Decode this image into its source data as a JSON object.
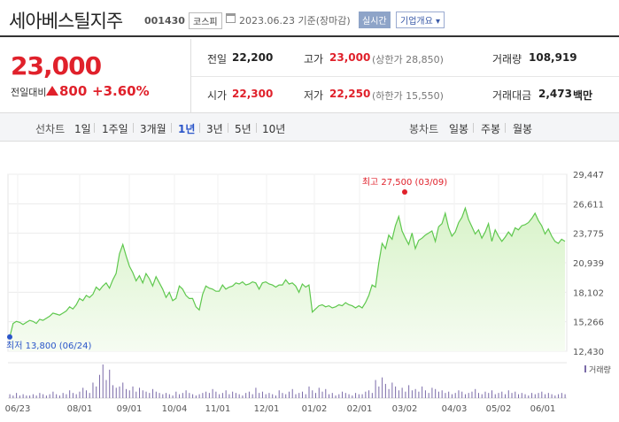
{
  "header": {
    "company_name": "세아베스틸지주",
    "code": "001430",
    "market": "코스피",
    "date_text": "2023.06.23 기준(장마감)",
    "realtime_label": "실시간",
    "info_label": "기업개요 ▾"
  },
  "summary": {
    "price": "23,000",
    "change_label": "전일대비",
    "change_value": "800",
    "change_pct": "+3.60%",
    "prev_close_label": "전일",
    "prev_close": "22,200",
    "high_label": "고가",
    "high": "23,000",
    "upper_limit": "(상한가 28,850)",
    "volume_label": "거래량",
    "volume": "108,919",
    "open_label": "시가",
    "open": "22,300",
    "low_label": "저가",
    "low": "22,250",
    "lower_limit": "(하한가 15,550)",
    "amount_label": "거래대금",
    "amount": "2,473",
    "amount_unit": "백만"
  },
  "tabs": {
    "line_chart_label": "선차트",
    "periods": [
      "1일",
      "1주일",
      "3개월",
      "1년",
      "3년",
      "5년",
      "10년"
    ],
    "active_period": "1년",
    "candle_label": "봉차트",
    "candles": [
      "일봉",
      "주봉",
      "월봉"
    ]
  },
  "colors": {
    "up": "#e0212b",
    "accent": "#2a55c9",
    "line": "#5fc84e",
    "area": "#d8f3c9"
  },
  "chart_data": {
    "type": "area",
    "y_ticks": [
      "29,447",
      "26,611",
      "23,775",
      "20,939",
      "18,102",
      "15,266",
      "12,430"
    ],
    "x_labels": [
      "06/23",
      "08/01",
      "09/01",
      "10/04",
      "11/01",
      "12/01",
      "01/02",
      "02/01",
      "03/02",
      "04/03",
      "05/02",
      "06/01"
    ],
    "volume_legend": "거래량",
    "max_annotation": "최고 27,500 (03/09)",
    "min_annotation": "최저 13,800 (06/24)",
    "ylim": [
      12430,
      29447
    ],
    "series": [
      {
        "values": [
          13800,
          15100,
          15300,
          15200,
          15000,
          15200,
          15400,
          15300,
          15100,
          15500,
          15400,
          15600,
          15800,
          16100,
          16000,
          15900,
          16100,
          16300,
          16700,
          16500,
          16900,
          17500,
          17300,
          17800,
          17600,
          17900,
          18600,
          18300,
          18700,
          19000,
          18500,
          19300,
          19900,
          21800,
          22700,
          21600,
          20600,
          20000,
          19200,
          19700,
          19000,
          19900,
          19400,
          18700,
          19600,
          19000,
          18400,
          17600,
          18100,
          17300,
          17500,
          18700,
          18400,
          17800,
          17500,
          17500,
          16700,
          16400,
          17900,
          18700,
          18500,
          18400,
          18200,
          18200,
          18800,
          18400,
          18600,
          18700,
          19000,
          18900,
          19100,
          18800,
          18900,
          19100,
          19000,
          18400,
          19000,
          19100,
          18900,
          18800,
          18600,
          18800,
          18800,
          19300,
          18900,
          19000,
          18700,
          18100,
          18900,
          18600,
          18800,
          16200,
          16500,
          16800,
          16900,
          16700,
          16800,
          16600,
          16700,
          16900,
          16800,
          17100,
          16900,
          16800,
          16600,
          16800,
          16600,
          17100,
          17800,
          18800,
          18600,
          20900,
          22800,
          22300,
          23600,
          23200,
          24500,
          25400,
          24000,
          23300,
          22700,
          23800,
          22300,
          23100,
          23300,
          23600,
          23800,
          24000,
          23000,
          24400,
          24700,
          25700,
          24300,
          23500,
          23900,
          24800,
          25300,
          26200,
          25100,
          24400,
          23700,
          24100,
          23300,
          23900,
          24700,
          23000,
          24100,
          23500,
          23000,
          23400,
          23900,
          23500,
          24300,
          24100,
          24500,
          24600,
          24800,
          25200,
          25700,
          25000,
          24500,
          23700,
          24200,
          23500,
          23000,
          22800,
          23200,
          23000
        ]
      }
    ]
  }
}
